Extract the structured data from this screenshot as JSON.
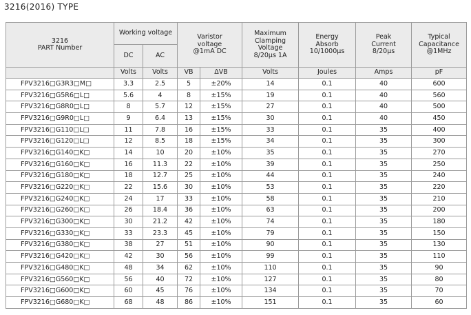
{
  "title": "3216(2016) TYPE",
  "header": {
    "part": [
      "3216",
      "PART Number"
    ],
    "working_voltage": "Working voltage",
    "dc": "DC",
    "ac": "AC",
    "varistor": [
      "Varistor",
      "voltage",
      "@1mA DC"
    ],
    "clamping": [
      "Maximum",
      "Clamping",
      "Voltage",
      "8/20μs 1A"
    ],
    "energy": [
      "Energy",
      "Absorb",
      "10/1000μs"
    ],
    "peak": [
      "Peak",
      "Current",
      "8/20μs"
    ],
    "capacitance": [
      "Typical",
      "Capacitance",
      "@1MHz"
    ],
    "units": [
      "Volts",
      "Volts",
      "VB",
      "ΔVB",
      "Volts",
      "Joules",
      "Amps",
      "pF"
    ]
  },
  "table": {
    "rows": [
      [
        "FPV3216□G3R3□M□",
        "3.3",
        "2.5",
        "5",
        "±20%",
        "14",
        "0.1",
        "40",
        "600"
      ],
      [
        "FPV3216□G5R6□L□",
        "5.6",
        "4",
        "8",
        "±15%",
        "19",
        "0.1",
        "40",
        "560"
      ],
      [
        "FPV3216□G8R0□L□",
        "8",
        "5.7",
        "12",
        "±15%",
        "27",
        "0.1",
        "40",
        "500"
      ],
      [
        "FPV3216□G9R0□L□",
        "9",
        "6.4",
        "13",
        "±15%",
        "30",
        "0.1",
        "40",
        "450"
      ],
      [
        "FPV3216□G110□L□",
        "11",
        "7.8",
        "16",
        "±15%",
        "33",
        "0.1",
        "35",
        "400"
      ],
      [
        "FPV3216□G120□L□",
        "12",
        "8.5",
        "18",
        "±15%",
        "34",
        "0.1",
        "35",
        "300"
      ],
      [
        "FPV3216□G140□K□",
        "14",
        "10",
        "20",
        "±10%",
        "35",
        "0.1",
        "35",
        "270"
      ],
      [
        "FPV3216□G160□K□",
        "16",
        "11.3",
        "22",
        "±10%",
        "39",
        "0.1",
        "35",
        "250"
      ],
      [
        "FPV3216□G180□K□",
        "18",
        "12.7",
        "25",
        "±10%",
        "44",
        "0.1",
        "35",
        "240"
      ],
      [
        "FPV3216□G220□K□",
        "22",
        "15.6",
        "30",
        "±10%",
        "53",
        "0.1",
        "35",
        "220"
      ],
      [
        "FPV3216□G240□K□",
        "24",
        "17",
        "33",
        "±10%",
        "58",
        "0.1",
        "35",
        "210"
      ],
      [
        "FPV3216□G260□K□",
        "26",
        "18.4",
        "36",
        "±10%",
        "63",
        "0.1",
        "35",
        "200"
      ],
      [
        "FPV3216□G300□K□",
        "30",
        "21.2",
        "42",
        "±10%",
        "74",
        "0.1",
        "35",
        "180"
      ],
      [
        "FPV3216□G330□K□",
        "33",
        "23.3",
        "45",
        "±10%",
        "79",
        "0.1",
        "35",
        "150"
      ],
      [
        "FPV3216□G380□K□",
        "38",
        "27",
        "51",
        "±10%",
        "90",
        "0.1",
        "35",
        "130"
      ],
      [
        "FPV3216□G420□K□",
        "42",
        "30",
        "56",
        "±10%",
        "99",
        "0.1",
        "35",
        "110"
      ],
      [
        "FPV3216□G480□K□",
        "48",
        "34",
        "62",
        "±10%",
        "110",
        "0.1",
        "35",
        "90"
      ],
      [
        "FPV3216□G560□K□",
        "56",
        "40",
        "72",
        "±10%",
        "127",
        "0.1",
        "35",
        "80"
      ],
      [
        "FPV3216□G600□K□",
        "60",
        "45",
        "76",
        "±10%",
        "134",
        "0.1",
        "35",
        "70"
      ],
      [
        "FPV3216□G680□K□",
        "68",
        "48",
        "86",
        "±10%",
        "151",
        "0.1",
        "35",
        "60"
      ]
    ]
  }
}
